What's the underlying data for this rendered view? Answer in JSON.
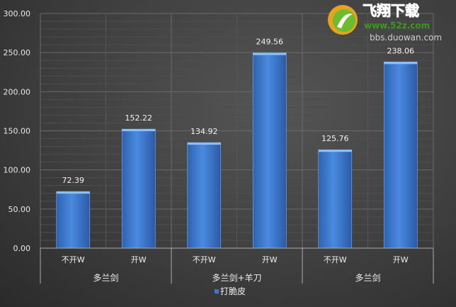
{
  "chart_data": {
    "type": "bar",
    "groups": [
      {
        "label": "多兰剑",
        "categories": [
          "不开W",
          "开W"
        ]
      },
      {
        "label": "多兰剑+羊刀",
        "categories": [
          "不开W",
          "开W"
        ]
      },
      {
        "label": "多兰剑",
        "categories": [
          "不开W",
          "开W"
        ]
      }
    ],
    "series": [
      {
        "name": "打脆皮",
        "values": [
          72.39,
          152.22,
          134.92,
          249.56,
          125.76,
          238.06
        ],
        "color": "#3a78d0"
      }
    ],
    "data_labels": [
      "72.39",
      "152.22",
      "134.92",
      "249.56",
      "125.76",
      "238.06"
    ],
    "yticks": [
      "0.00",
      "50.00",
      "100.00",
      "150.00",
      "200.00",
      "250.00",
      "300.00"
    ],
    "ylim": [
      0,
      300
    ],
    "grid": true,
    "legend": "bottom"
  },
  "watermark": {
    "brand": "飞翔下载",
    "url": "www.52z.com",
    "source": "bbs.duowan.com"
  }
}
